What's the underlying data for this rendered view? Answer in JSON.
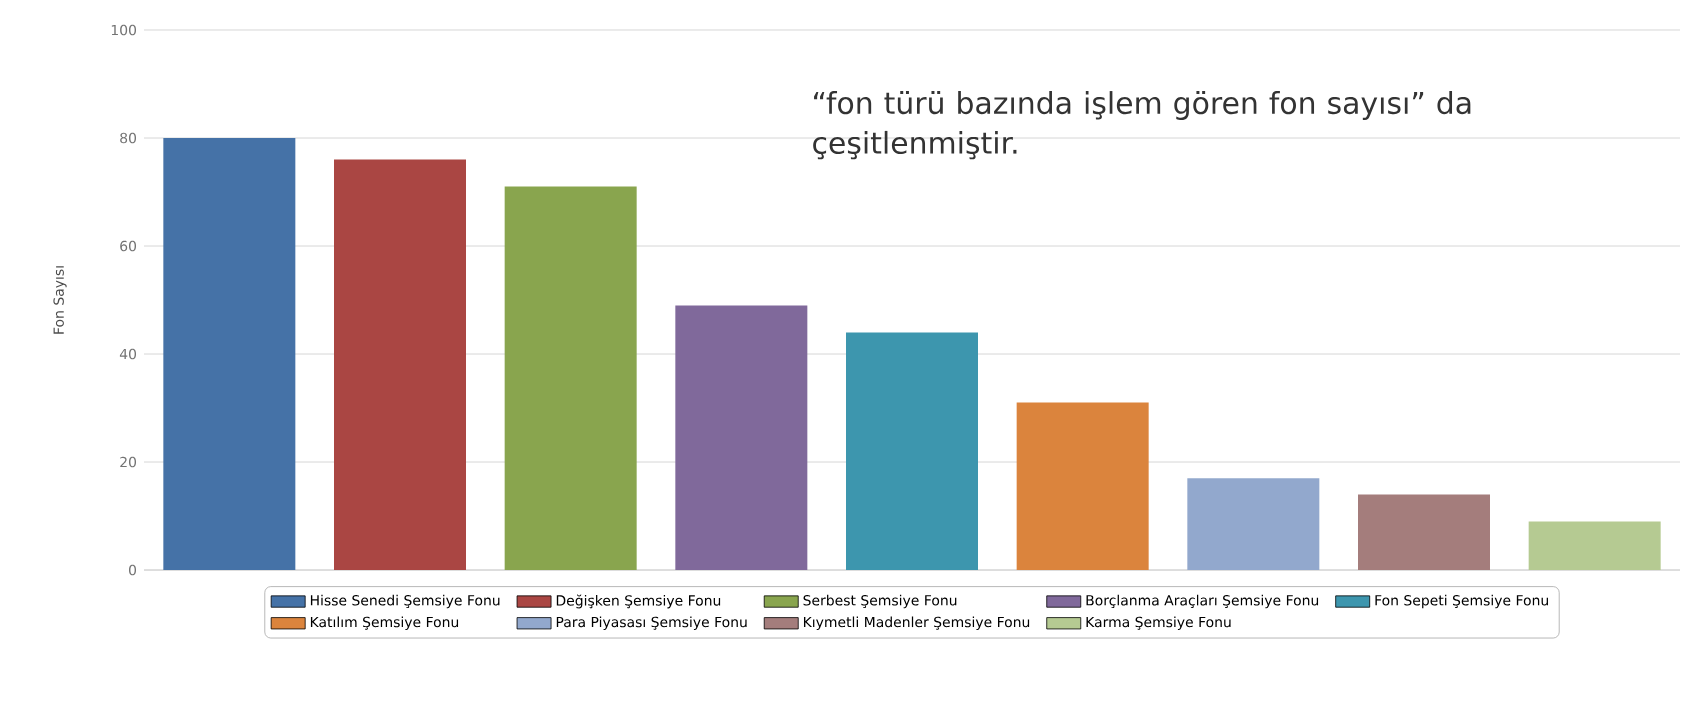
{
  "chart_data": {
    "type": "bar",
    "ylabel": "Fon Sayısı",
    "categories": [
      null,
      null,
      null,
      null,
      null,
      null,
      null,
      null,
      null
    ],
    "series": [
      {
        "name": "Hisse Senedi Şemsiye Fonu",
        "color": "#4572a7",
        "values": [
          80,
          null,
          null,
          null,
          null,
          null,
          null,
          null,
          null
        ]
      },
      {
        "name": "Değişken Şemsiye Fonu",
        "color": "#aa4643",
        "values": [
          null,
          76,
          null,
          null,
          null,
          null,
          null,
          null,
          null
        ]
      },
      {
        "name": "Serbest Şemsiye Fonu",
        "color": "#89a54e",
        "values": [
          null,
          null,
          71,
          null,
          null,
          null,
          null,
          null,
          null
        ]
      },
      {
        "name": "Borçlanma Araçları Şemsiye Fonu",
        "color": "#80699b",
        "values": [
          null,
          null,
          null,
          49,
          null,
          null,
          null,
          null,
          null
        ]
      },
      {
        "name": "Fon Sepeti Şemsiye Fonu",
        "color": "#3d96ae",
        "values": [
          null,
          null,
          null,
          null,
          44,
          null,
          null,
          null,
          null
        ]
      },
      {
        "name": "Katılım Şemsiye Fonu",
        "color": "#db843d",
        "values": [
          null,
          null,
          null,
          null,
          null,
          31,
          null,
          null,
          null
        ]
      },
      {
        "name": "Para Piyasası Şemsiye Fonu",
        "color": "#92a8cd",
        "values": [
          null,
          null,
          null,
          null,
          null,
          null,
          17,
          null,
          null
        ]
      },
      {
        "name": "Kıymetli Madenler Şemsiye Fonu",
        "color": "#a47d7c",
        "values": [
          null,
          null,
          null,
          null,
          null,
          null,
          null,
          14,
          null
        ]
      },
      {
        "name": "Karma Şemsiye Fonu",
        "color": "#b5ca92",
        "values": [
          null,
          null,
          null,
          null,
          null,
          null,
          null,
          null,
          9
        ]
      }
    ],
    "ylim": [
      0,
      100
    ],
    "yticks": [
      0,
      20,
      40,
      60,
      80,
      100
    ],
    "grid": "y",
    "legend": "bottom",
    "annotations": [
      "“fon türü bazında işlem gören fon sayısı” da çeşitlenmiştir."
    ]
  }
}
